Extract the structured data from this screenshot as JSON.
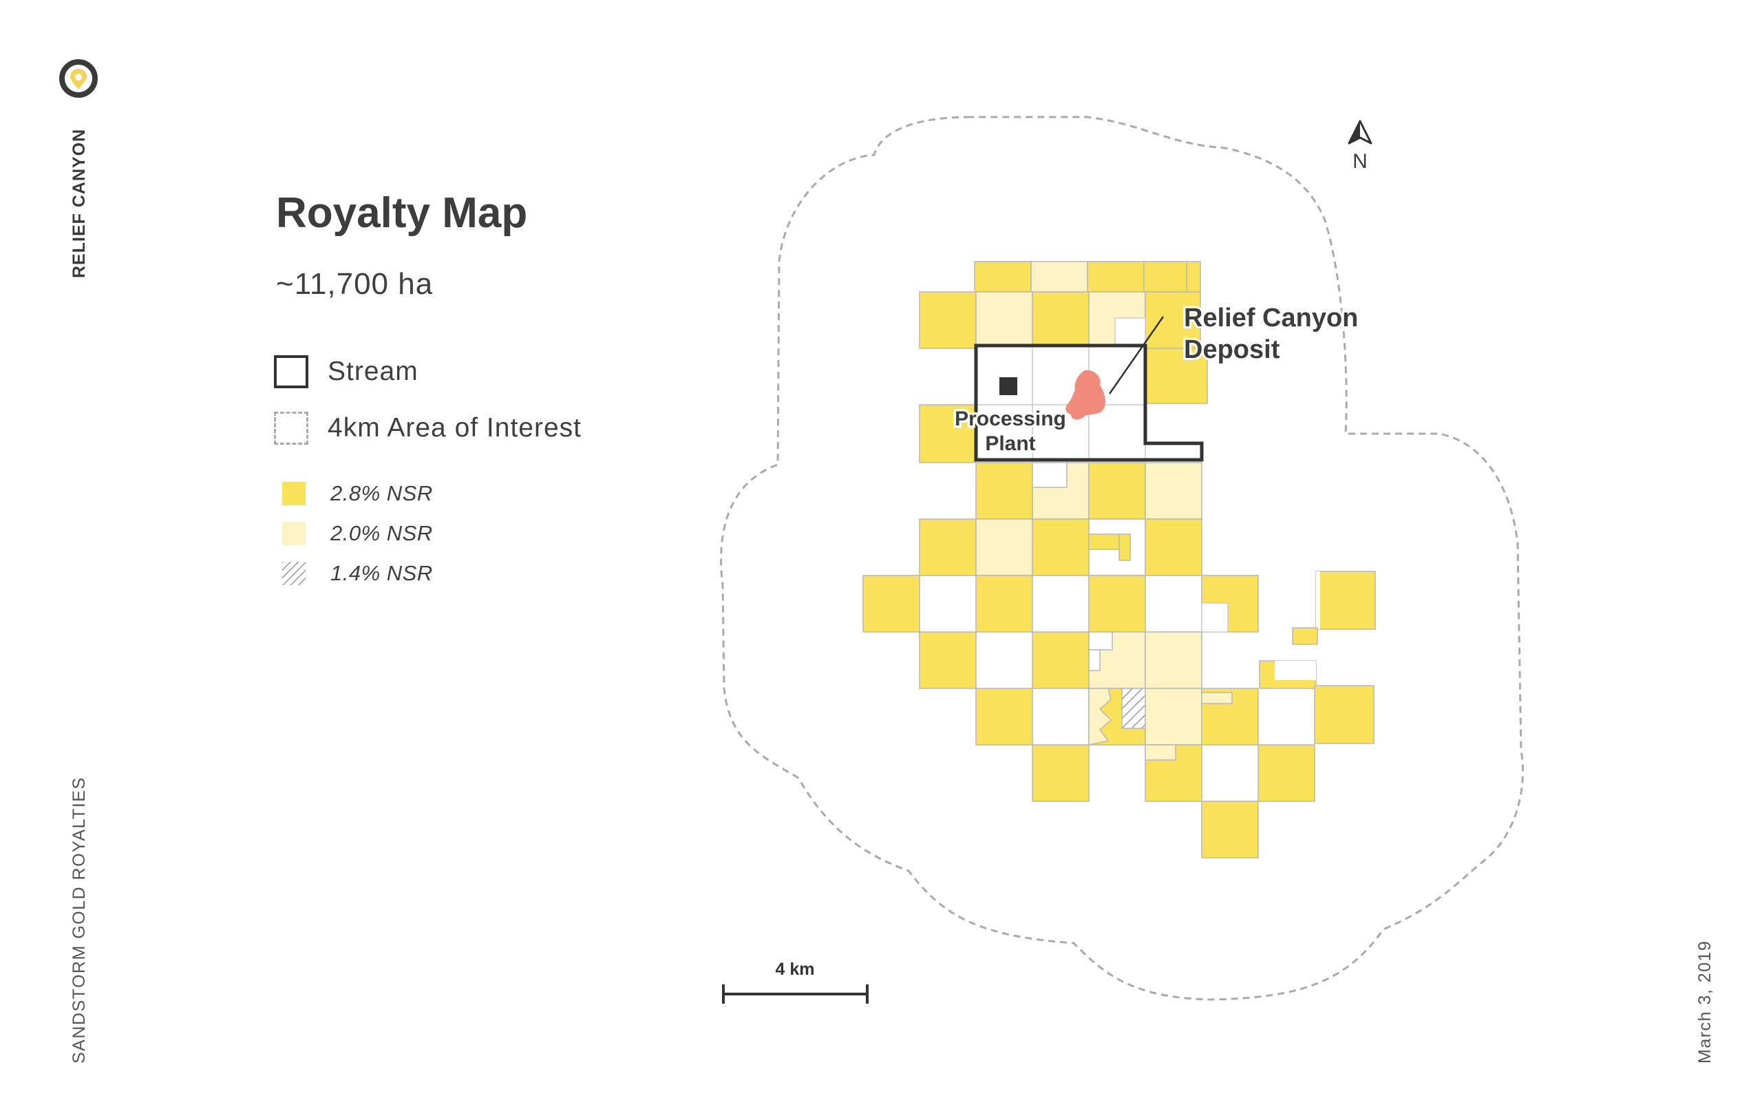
{
  "sidebar": {
    "brand": "RELIEF CANYON",
    "company": "SANDSTORM GOLD ROYALTIES",
    "date": "March 3, 2019"
  },
  "header": {
    "title": "Royalty Map",
    "area": "~11,700 ha"
  },
  "legend": {
    "stream": "Stream",
    "aoi": "4km Area of Interest",
    "nsr_28": "2.8% NSR",
    "nsr_20": "2.0% NSR",
    "nsr_14": "1.4% NSR"
  },
  "map": {
    "north_label": "N",
    "deposit_label_1": "Relief Canyon",
    "deposit_label_2": "Deposit",
    "plant_label_1": "Processing",
    "plant_label_2": "Plant",
    "scale_label": "4 km"
  },
  "colors": {
    "nsr_28": "#f9e15a",
    "nsr_20": "#fcf2c4",
    "stream": "#333333",
    "deposit": "#f08a7a",
    "aoi": "#aaaaaa"
  }
}
